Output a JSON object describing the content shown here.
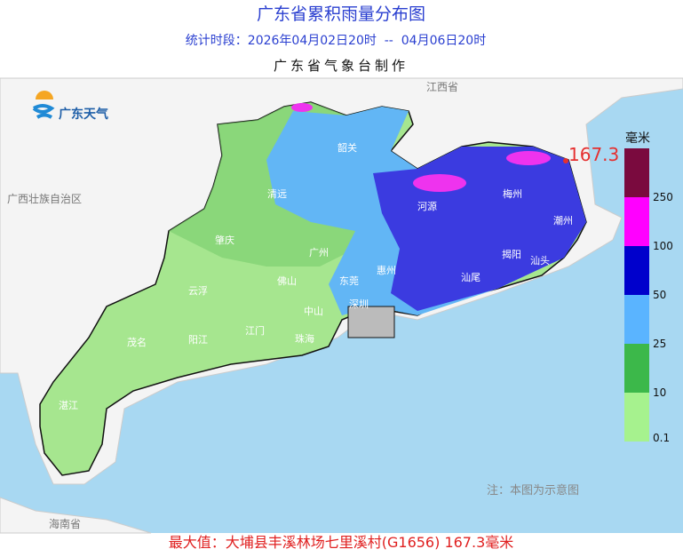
{
  "header": {
    "title": "广东省累积雨量分布图",
    "period": "统计时段：2026年04月02日20时  --  04月06日20时",
    "producer": "广东省气象台制作"
  },
  "logo": "广东天气",
  "neighbors": [
    "江西省",
    "广西壮族自治区",
    "海南省"
  ],
  "places": [
    "韶关",
    "清远",
    "河源",
    "梅州",
    "潮州",
    "肇庆",
    "广州",
    "惠州",
    "揭阳",
    "汕头",
    "汕尾",
    "云浮",
    "佛山",
    "东莞",
    "深圳",
    "中山",
    "江门",
    "珠海",
    "茂名",
    "阳江",
    "湛江"
  ],
  "max_marker": "167.3",
  "legend": {
    "unit": "毫米",
    "labels": [
      "250",
      "100",
      "50",
      "25",
      "10",
      "0.1"
    ]
  },
  "note": "注：本图为示意图",
  "footer": "最大值：大埔县丰溪林场七里溪村(G1656) 167.3毫米"
}
